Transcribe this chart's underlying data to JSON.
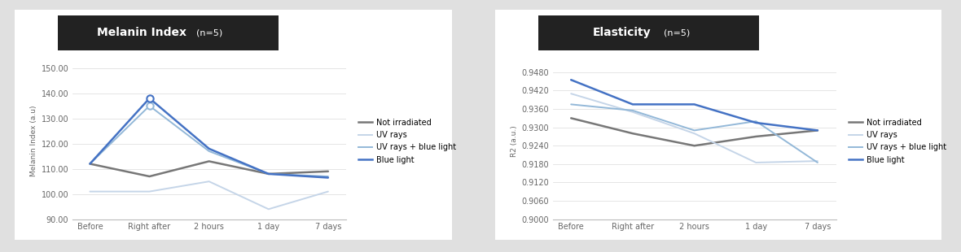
{
  "melanin": {
    "title": "Melanin Index",
    "subtitle": "(n=5)",
    "ylabel": "Melanin Index (a.u)",
    "xticklabels": [
      "Before",
      "Right after",
      "2 hours",
      "1 day",
      "7 days"
    ],
    "ylim": [
      90.0,
      152.0
    ],
    "yticks": [
      90.0,
      100.0,
      110.0,
      120.0,
      130.0,
      140.0,
      150.0
    ],
    "series": {
      "not_irradiated": [
        112.0,
        107.0,
        113.0,
        108.0,
        109.0
      ],
      "uv_rays": [
        101.0,
        101.0,
        105.0,
        94.0,
        101.0
      ],
      "uv_blue": [
        112.0,
        135.0,
        117.0,
        108.0,
        107.0
      ],
      "blue_light": [
        112.0,
        138.0,
        118.0,
        108.0,
        106.5
      ]
    },
    "colors": {
      "not_irradiated": "#777777",
      "uv_rays": "#c5d5e8",
      "uv_blue": "#93b8d8",
      "blue_light": "#4472c4"
    },
    "legend_labels": [
      "Not irradiated",
      "UV rays",
      "UV rays + blue light",
      "Blue light"
    ]
  },
  "elasticity": {
    "title": "Elasticity",
    "subtitle": "(n=5)",
    "ylabel": "R2 (a.u.)",
    "xticklabels": [
      "Before",
      "Right after",
      "2 hours",
      "1 day",
      "7 days"
    ],
    "ylim": [
      0.9,
      0.951
    ],
    "yticks": [
      0.9,
      0.906,
      0.912,
      0.918,
      0.924,
      0.93,
      0.936,
      0.942,
      0.948
    ],
    "series": {
      "not_irradiated": [
        0.933,
        0.928,
        0.924,
        0.927,
        0.929
      ],
      "uv_rays": [
        0.941,
        0.935,
        0.928,
        0.9185,
        0.919
      ],
      "uv_blue": [
        0.9375,
        0.9355,
        0.929,
        0.932,
        0.9185
      ],
      "blue_light": [
        0.9455,
        0.9375,
        0.9375,
        0.9315,
        0.929
      ]
    },
    "colors": {
      "not_irradiated": "#777777",
      "uv_rays": "#c5d5e8",
      "uv_blue": "#93b8d8",
      "blue_light": "#4472c4"
    },
    "legend_labels": [
      "Not irradiated",
      "UV rays",
      "UV rays + blue light",
      "Blue light"
    ]
  },
  "bg_color": "#e0e0e0",
  "panel_color": "#ffffff",
  "title_bg": "#222222",
  "title_fg": "#ffffff"
}
